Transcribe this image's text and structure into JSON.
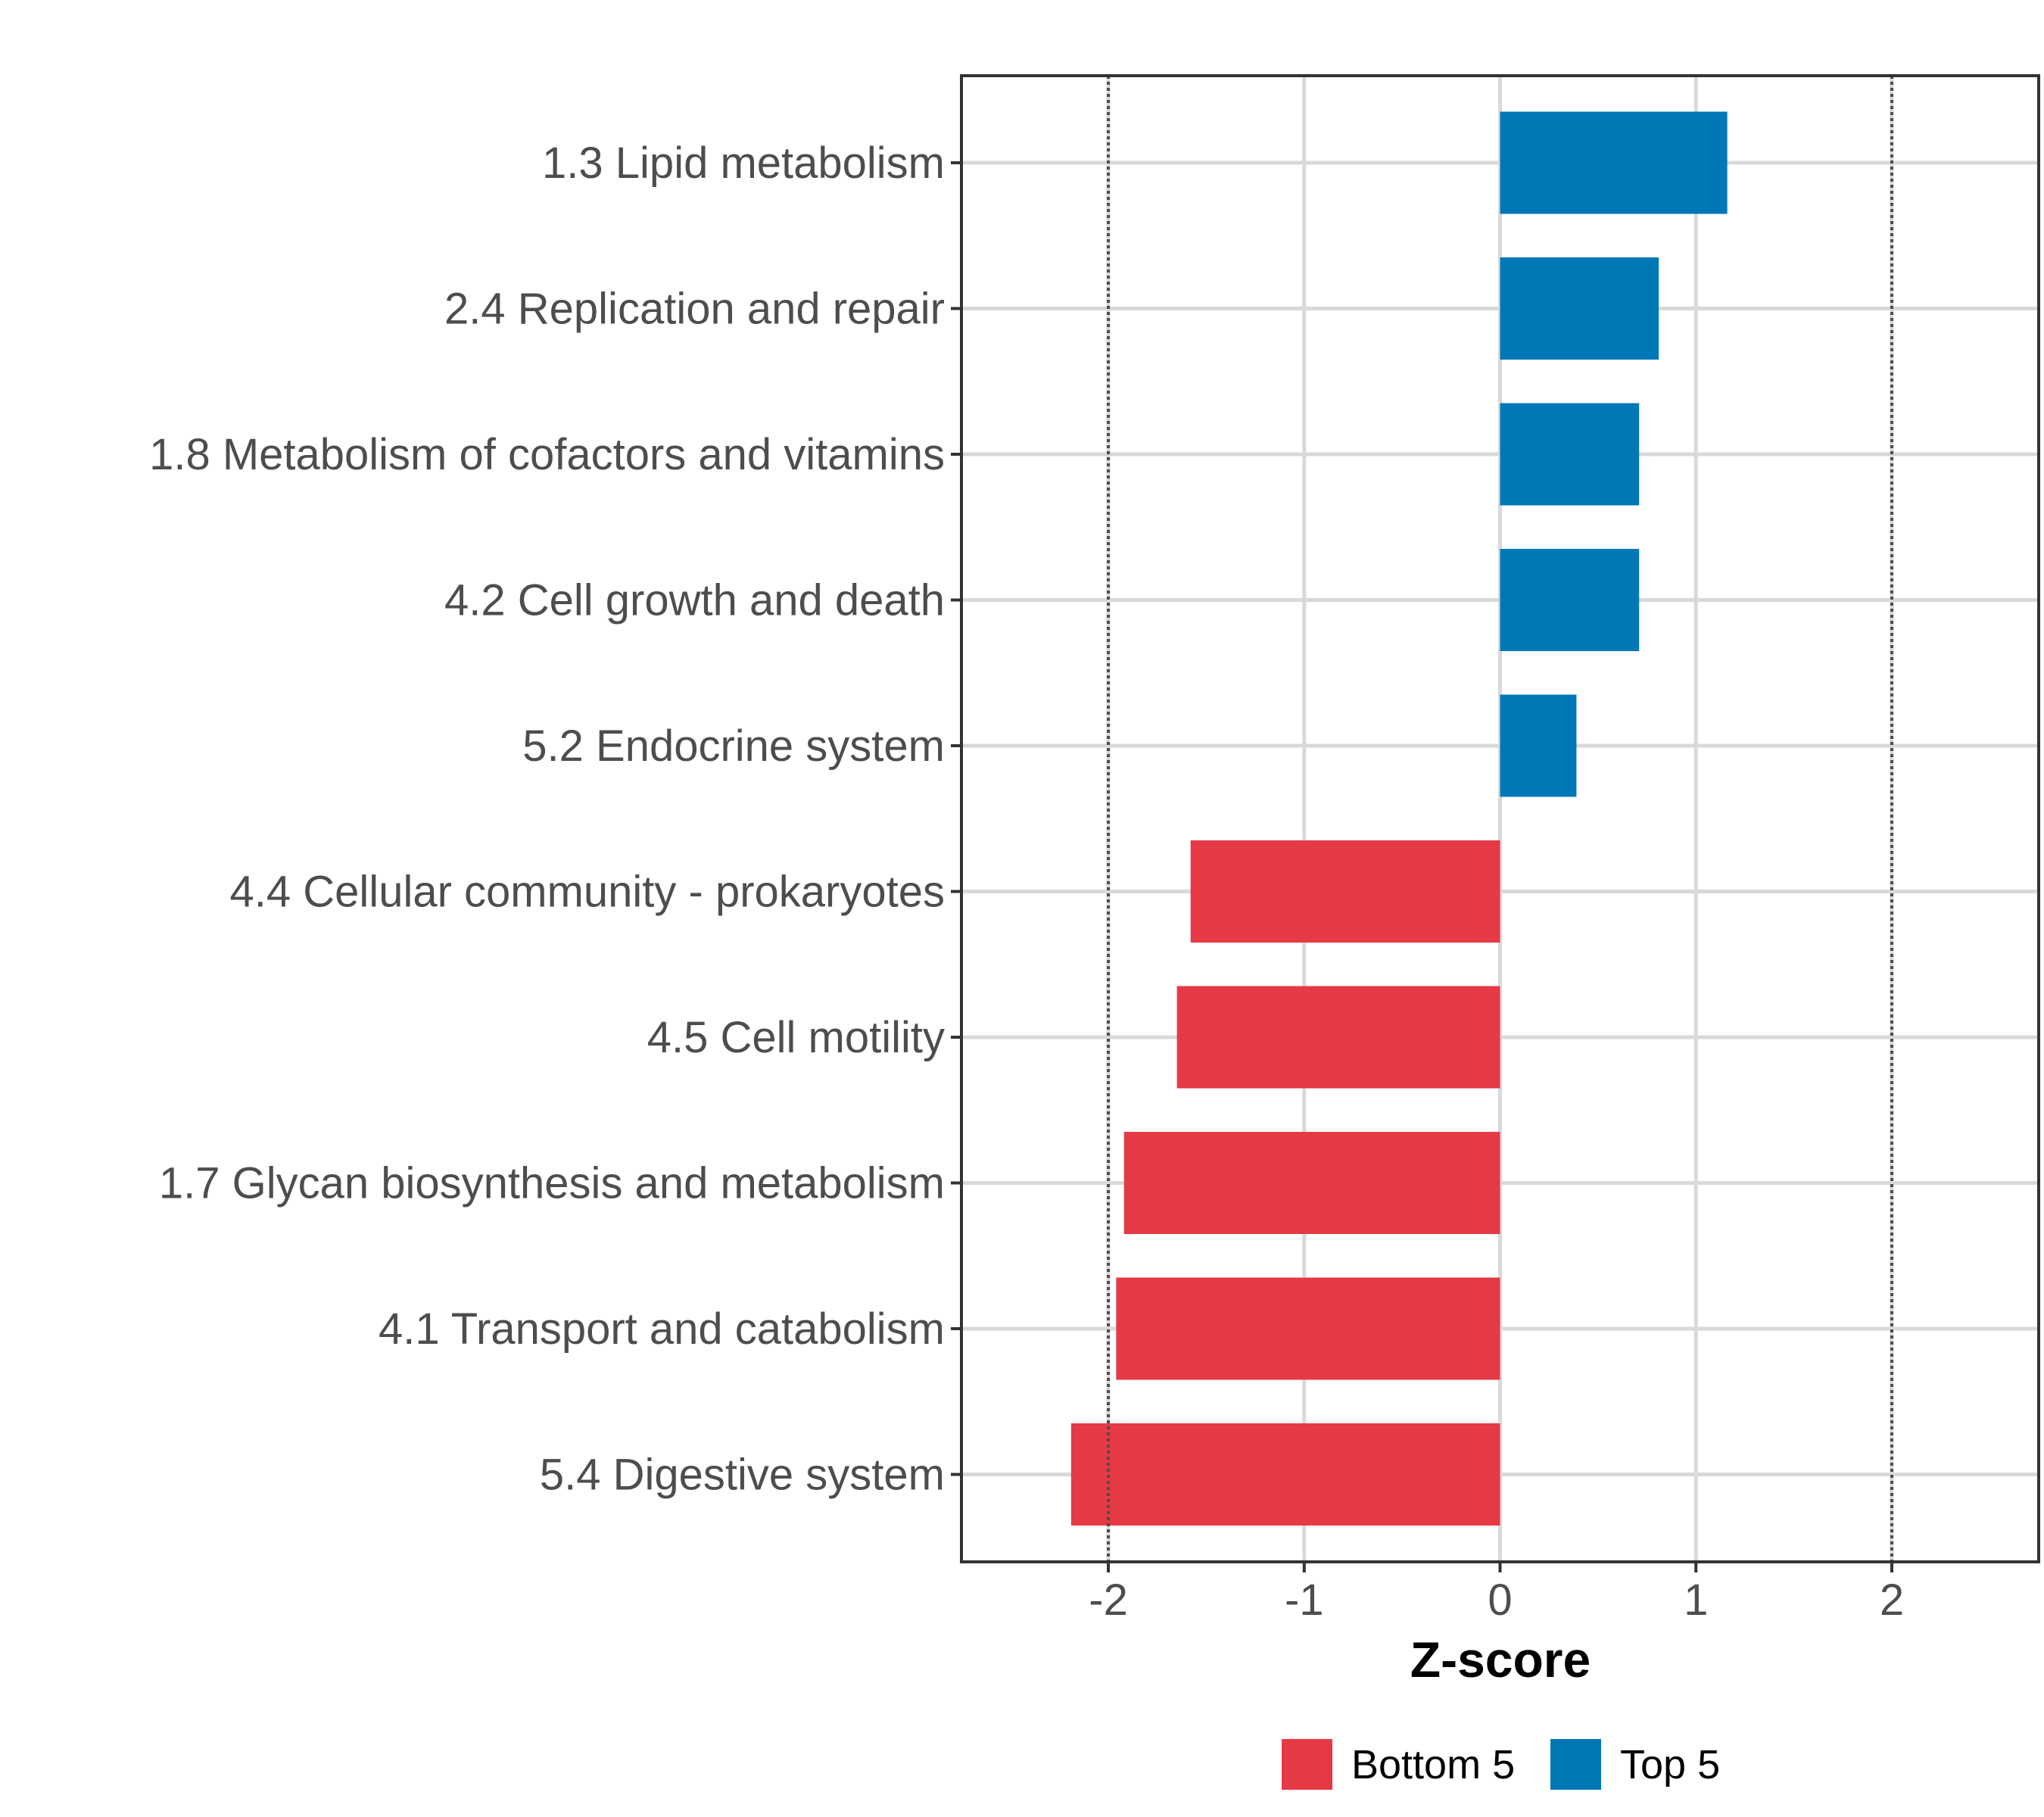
{
  "chart_data": {
    "type": "bar",
    "orientation": "horizontal",
    "title": "",
    "xlabel": "Z-score",
    "ylabel": "",
    "xlim": [
      -2.75,
      2.75
    ],
    "x_ticks": [
      -2,
      -1,
      0,
      1,
      2
    ],
    "x_tick_labels": [
      "-2",
      "-1",
      "0",
      "1",
      "2"
    ],
    "reference_lines": [
      -2,
      2
    ],
    "grid": true,
    "categories": [
      "1.3 Lipid metabolism",
      "2.4 Replication and repair",
      "1.8 Metabolism of cofactors and vitamins",
      "4.2 Cell growth and death",
      "5.2 Endocrine system",
      "4.4 Cellular community - prokaryotes",
      "4.5 Cell motility",
      "1.7 Glycan biosynthesis and metabolism",
      "4.1 Transport and catabolism",
      "5.4 Digestive system"
    ],
    "values": [
      1.16,
      0.81,
      0.71,
      0.71,
      0.39,
      -1.58,
      -1.65,
      -1.92,
      -1.96,
      -2.19
    ],
    "groups": [
      "Top 5",
      "Top 5",
      "Top 5",
      "Top 5",
      "Top 5",
      "Bottom 5",
      "Bottom 5",
      "Bottom 5",
      "Bottom 5",
      "Bottom 5"
    ],
    "legend": {
      "position": "bottom",
      "entries": [
        {
          "label": "Bottom 5",
          "color": "#e63946"
        },
        {
          "label": "Top 5",
          "color": "#0077b6"
        }
      ]
    }
  }
}
